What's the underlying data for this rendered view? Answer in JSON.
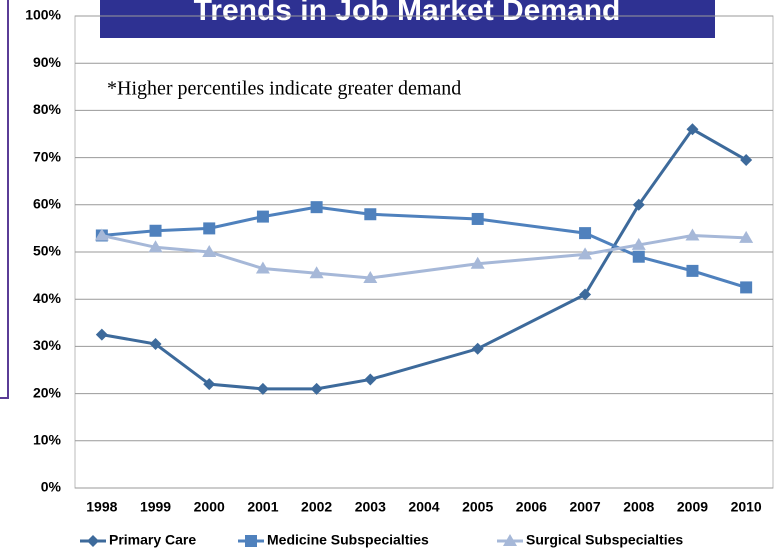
{
  "chart_data": {
    "type": "line",
    "title": "Trends in Job Market Demand",
    "annotation": "*Higher percentiles indicate greater demand",
    "x": [
      1998,
      1999,
      2000,
      2001,
      2002,
      2003,
      2005,
      2007,
      2008,
      2009,
      2010
    ],
    "xlim": [
      1997.5,
      2010.5
    ],
    "xticks": [
      1998,
      1999,
      2000,
      2001,
      2002,
      2003,
      2004,
      2005,
      2006,
      2007,
      2008,
      2009,
      2010
    ],
    "ylim": [
      0,
      100
    ],
    "yticks": [
      {
        "value": 0,
        "label": "0%"
      },
      {
        "value": 10,
        "label": "10%"
      },
      {
        "value": 20,
        "label": "20%"
      },
      {
        "value": 30,
        "label": "30%"
      },
      {
        "value": 40,
        "label": "40%"
      },
      {
        "value": 50,
        "label": "50%"
      },
      {
        "value": 60,
        "label": "60%"
      },
      {
        "value": 70,
        "label": "70%"
      },
      {
        "value": 80,
        "label": "80%"
      },
      {
        "value": 90,
        "label": "90%"
      },
      {
        "value": 100,
        "label": "100%"
      }
    ],
    "grid": true,
    "legend": "bottom",
    "series": [
      {
        "name": "Primary Care",
        "color": "#3d6a9b",
        "marker": "diamond",
        "values": [
          32.5,
          30.5,
          22,
          21,
          21,
          23,
          29.5,
          41,
          60,
          76,
          69.5
        ]
      },
      {
        "name": "Medicine Subspecialties",
        "color": "#4f81bd",
        "marker": "square",
        "values": [
          53.5,
          54.5,
          55,
          57.5,
          59.5,
          58,
          57,
          54,
          49,
          46,
          42.5
        ]
      },
      {
        "name": "Surgical Subspecialties",
        "color": "#a6b8d8",
        "marker": "triangle",
        "values": [
          53.5,
          51,
          50,
          46.5,
          45.5,
          44.5,
          47.5,
          49.5,
          51.5,
          53.5,
          53
        ]
      }
    ]
  }
}
